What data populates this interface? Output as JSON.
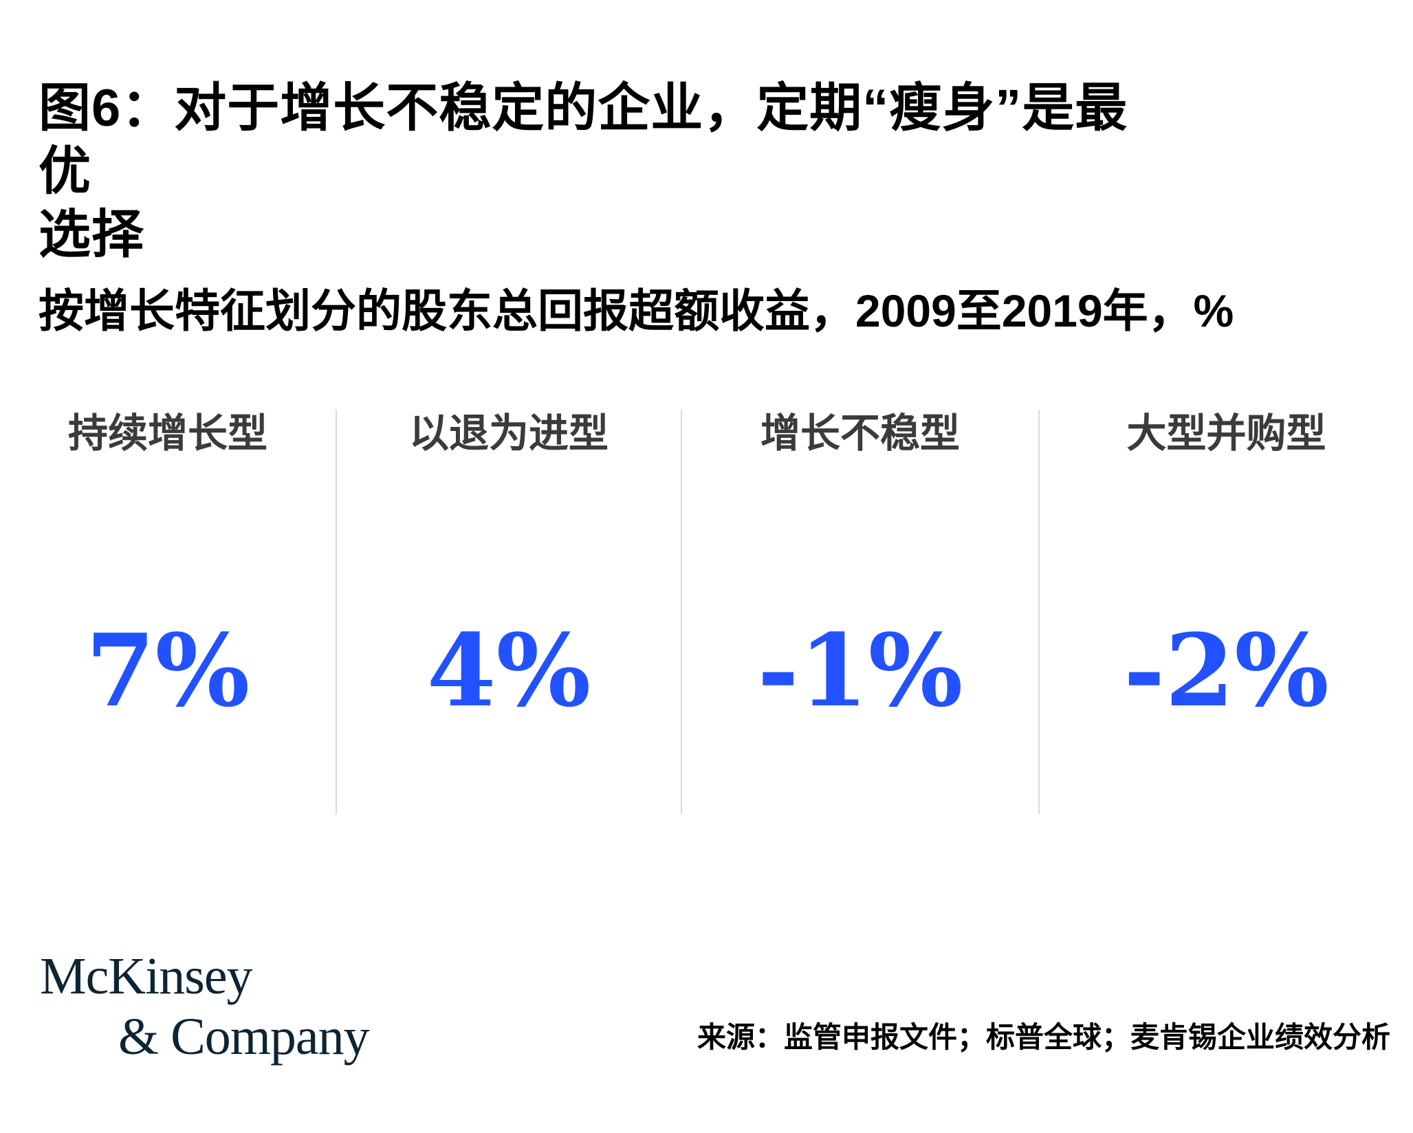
{
  "page": {
    "title_lines": [
      "图6：对于增长不稳定的企业，定期“瘦身”是最优",
      "选择"
    ],
    "subtitle": "按增长特征划分的股东总回报超额收益，2009至2019年，%"
  },
  "chart_data": {
    "type": "table",
    "title": "图6：对于增长不稳定的企业，定期“瘦身”是最优选择",
    "subtitle": "按增长特征划分的股东总回报超额收益，2009至2019年，%",
    "unit": "%",
    "categories": [
      "持续增长型",
      "以退为进型",
      "增长不稳型",
      "大型并购型"
    ],
    "values": [
      7,
      4,
      -1,
      -2
    ],
    "value_labels": [
      "7%",
      "4%",
      "-1%",
      "-2%"
    ],
    "layout": "four columns separated by light vertical divider lines, big blue serif numbers"
  },
  "footer": {
    "logo_line1": "McKinsey",
    "logo_line2": "& Company",
    "source": "来源：监管申报文件；标普全球；麦肯锡企业绩效分析"
  },
  "colors": {
    "accent_blue": "#2251FF",
    "logo_navy": "#0D2433",
    "label_gray": "#3B3B3B",
    "divider_gray": "#D9D9D9",
    "text_black": "#000000"
  }
}
